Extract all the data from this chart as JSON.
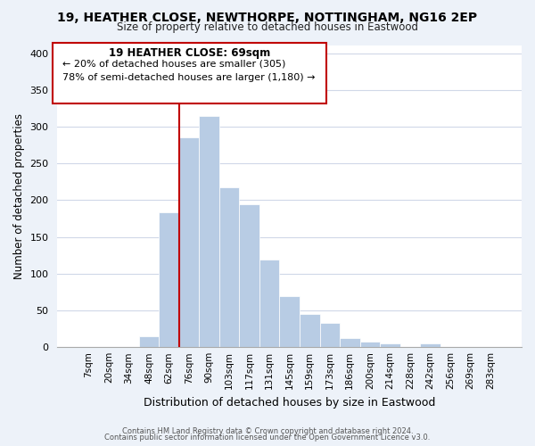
{
  "title": "19, HEATHER CLOSE, NEWTHORPE, NOTTINGHAM, NG16 2EP",
  "subtitle": "Size of property relative to detached houses in Eastwood",
  "xlabel": "Distribution of detached houses by size in Eastwood",
  "ylabel": "Number of detached properties",
  "footer_line1": "Contains HM Land Registry data © Crown copyright and database right 2024.",
  "footer_line2": "Contains public sector information licensed under the Open Government Licence v3.0.",
  "bin_labels": [
    "7sqm",
    "20sqm",
    "34sqm",
    "48sqm",
    "62sqm",
    "76sqm",
    "90sqm",
    "103sqm",
    "117sqm",
    "131sqm",
    "145sqm",
    "159sqm",
    "173sqm",
    "186sqm",
    "200sqm",
    "214sqm",
    "228sqm",
    "242sqm",
    "256sqm",
    "269sqm",
    "283sqm"
  ],
  "bar_heights": [
    0,
    0,
    0,
    15,
    183,
    285,
    315,
    217,
    195,
    119,
    70,
    45,
    33,
    12,
    7,
    5,
    0,
    5,
    0,
    0,
    0
  ],
  "bar_color": "#b8cce4",
  "highlight_line_color": "#c00000",
  "annotation_text_line1": "19 HEATHER CLOSE: 69sqm",
  "annotation_text_line2": "← 20% of detached houses are smaller (305)",
  "annotation_text_line3": "78% of semi-detached houses are larger (1,180) →",
  "annotation_box_color": "#c00000",
  "annotation_bg": "#ffffff",
  "ylim": [
    0,
    410
  ],
  "yticks": [
    0,
    50,
    100,
    150,
    200,
    250,
    300,
    350,
    400
  ],
  "bg_color": "#edf2f9",
  "plot_bg_color": "#ffffff",
  "grid_color": "#d0d8e8"
}
